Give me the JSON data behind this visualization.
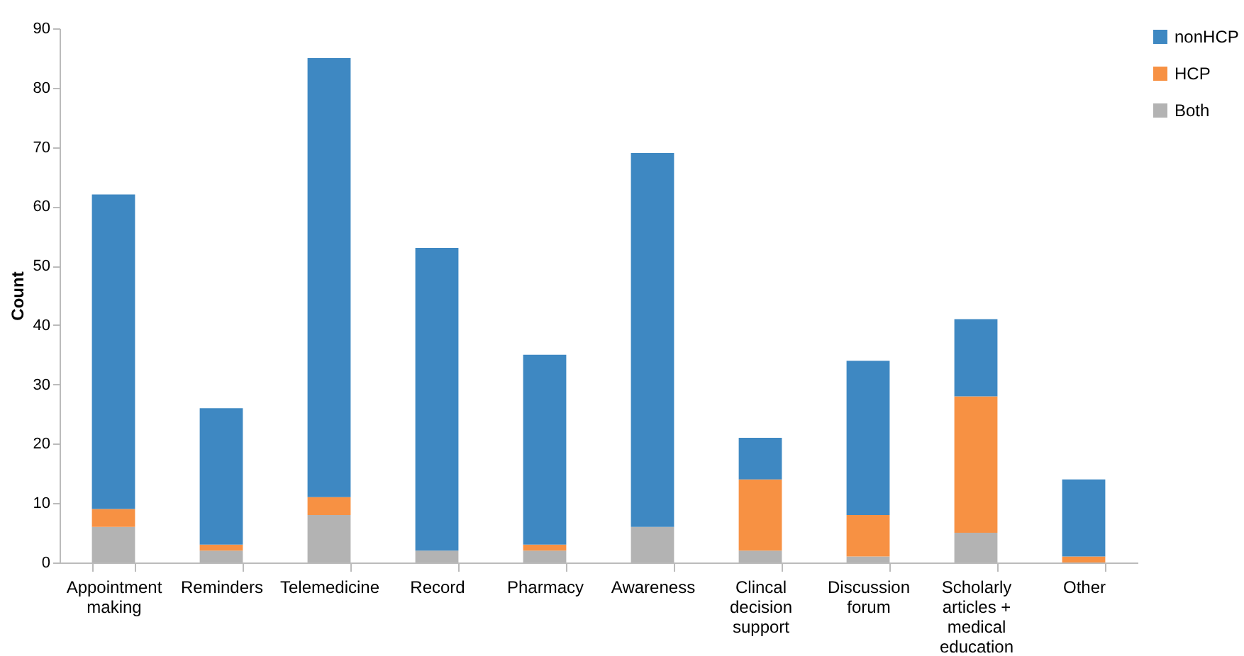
{
  "chart_data": {
    "type": "bar",
    "stacked": true,
    "ylabel": "Count",
    "categories": [
      "Appointment making",
      "Reminders",
      "Telemedicine",
      "Record",
      "Pharmacy",
      "Awareness",
      "Clincal decision support",
      "Discussion forum",
      "Scholarly articles + medical education",
      "Other"
    ],
    "series": [
      {
        "name": "Both",
        "color": "#b3b3b3",
        "values": [
          6,
          2,
          8,
          2,
          2,
          6,
          2,
          1,
          5,
          0
        ]
      },
      {
        "name": "HCP",
        "color": "#f79143",
        "values": [
          3,
          1,
          3,
          0,
          1,
          0,
          12,
          7,
          23,
          1
        ]
      },
      {
        "name": "nonHCP",
        "color": "#3e88c2",
        "values": [
          53,
          23,
          74,
          51,
          32,
          63,
          7,
          26,
          13,
          13
        ]
      }
    ],
    "ylim": [
      0,
      90
    ],
    "yticks": [
      0,
      10,
      20,
      30,
      40,
      50,
      60,
      70,
      80,
      90
    ],
    "grid": false,
    "legend": "right"
  }
}
